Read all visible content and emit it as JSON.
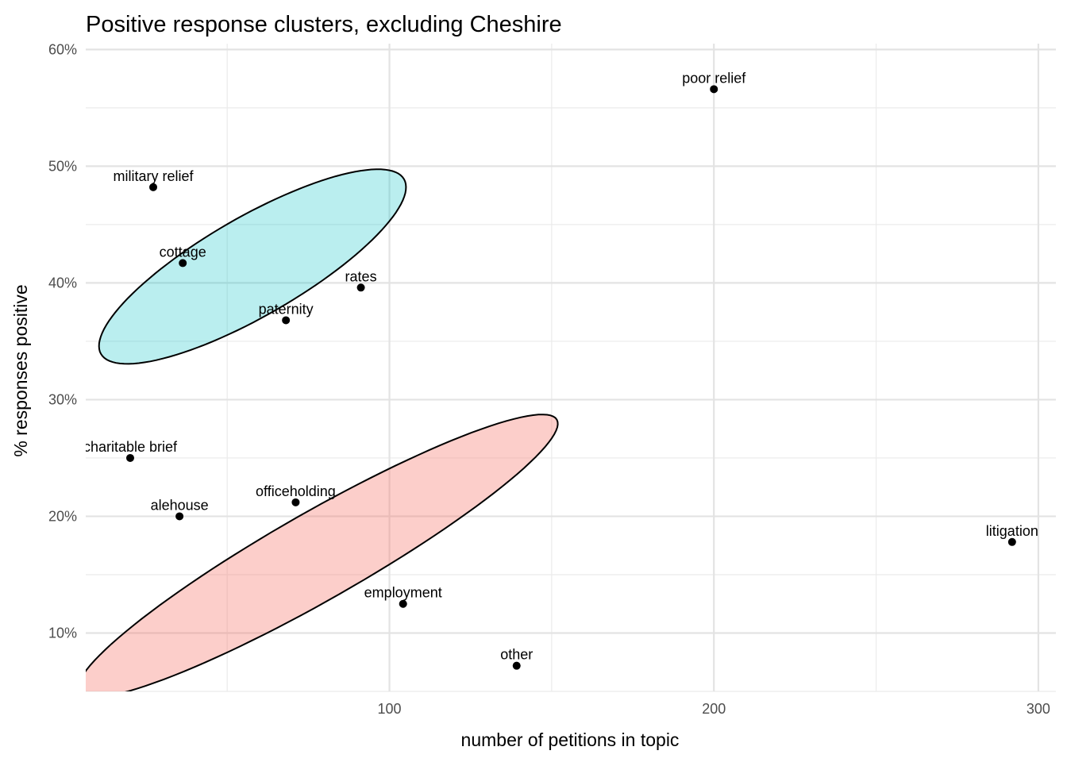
{
  "chart_data": {
    "type": "scatter",
    "title": "Positive response clusters, excluding Cheshire",
    "xlabel": "number of petitions in topic",
    "ylabel": "% responses positive",
    "xlim": [
      6.4,
      305.4
    ],
    "ylim": [
      5,
      60.5
    ],
    "x_ticks": [
      100,
      200,
      300
    ],
    "x_tick_labels": [
      "100",
      "200",
      "300"
    ],
    "x_minor_ticks": [
      50,
      150,
      250
    ],
    "y_ticks": [
      10,
      20,
      30,
      40,
      50,
      60
    ],
    "y_tick_labels": [
      "10%",
      "20%",
      "30%",
      "40%",
      "50%",
      "60%"
    ],
    "y_minor_ticks": [
      5,
      15,
      25,
      35,
      45,
      55
    ],
    "grid": true,
    "point_color": "#000000",
    "points": [
      {
        "label": "poor relief",
        "x": 200,
        "y": 56.6
      },
      {
        "label": "military relief",
        "x": 27.2,
        "y": 48.2
      },
      {
        "label": "cottage",
        "x": 36.3,
        "y": 41.7
      },
      {
        "label": "rates",
        "x": 91.2,
        "y": 39.6
      },
      {
        "label": "paternity",
        "x": 68.1,
        "y": 36.8
      },
      {
        "label": "charitable brief",
        "x": 20.1,
        "y": 25.0
      },
      {
        "label": "alehouse",
        "x": 35.3,
        "y": 20.0
      },
      {
        "label": "officeholding",
        "x": 71.1,
        "y": 21.2
      },
      {
        "label": "litigation",
        "x": 291.9,
        "y": 17.8
      },
      {
        "label": "employment",
        "x": 104.2,
        "y": 12.5
      },
      {
        "label": "other",
        "x": 139.2,
        "y": 7.2
      }
    ],
    "ellipses": [
      {
        "cluster": "high",
        "fill": "#00BFC4",
        "opacity": 0.27,
        "center": [
          57.8,
          41.4
        ],
        "axis1": [
          46.7,
          7.49
        ],
        "axis2": [
          7.6,
          -3.66
        ]
      },
      {
        "cluster": "low",
        "fill": "#F8766D",
        "opacity": 0.36,
        "center": [
          77.9,
          16.6
        ],
        "axis1": [
          73.7,
          11.68
        ],
        "axis2": [
          6.7,
          -3.26
        ]
      }
    ]
  }
}
